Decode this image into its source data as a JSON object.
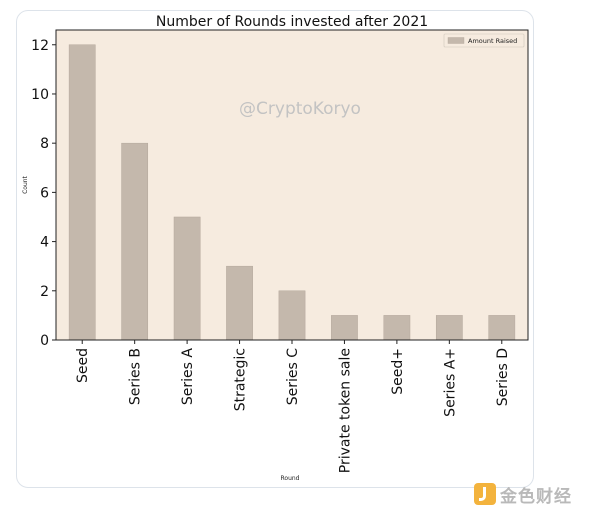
{
  "chart_data": {
    "type": "bar",
    "title": "Number of Rounds invested after 2021",
    "xlabel": "Round",
    "ylabel": "Count",
    "categories": [
      "Seed",
      "Series B",
      "Series A",
      "Strategic",
      "Series C",
      "Private token sale",
      "Seed+",
      "Series A+",
      "Series D"
    ],
    "series": [
      {
        "name": "Amount Raised",
        "values": [
          12,
          8,
          5,
          3,
          2,
          1,
          1,
          1,
          1
        ]
      }
    ],
    "ylim": [
      0,
      12.6
    ],
    "yticks": [
      0,
      2,
      4,
      6,
      8,
      10,
      12
    ],
    "legend_position": "top-right",
    "grid": false,
    "colors": {
      "bar": "#c4b8ac",
      "bar_edge": "#b3a79b",
      "plot_bg": "#f6ebdf"
    }
  },
  "watermark": "@CryptoKoryo",
  "brand": {
    "name": "金色财经",
    "icon": "jinse-logo-icon"
  }
}
